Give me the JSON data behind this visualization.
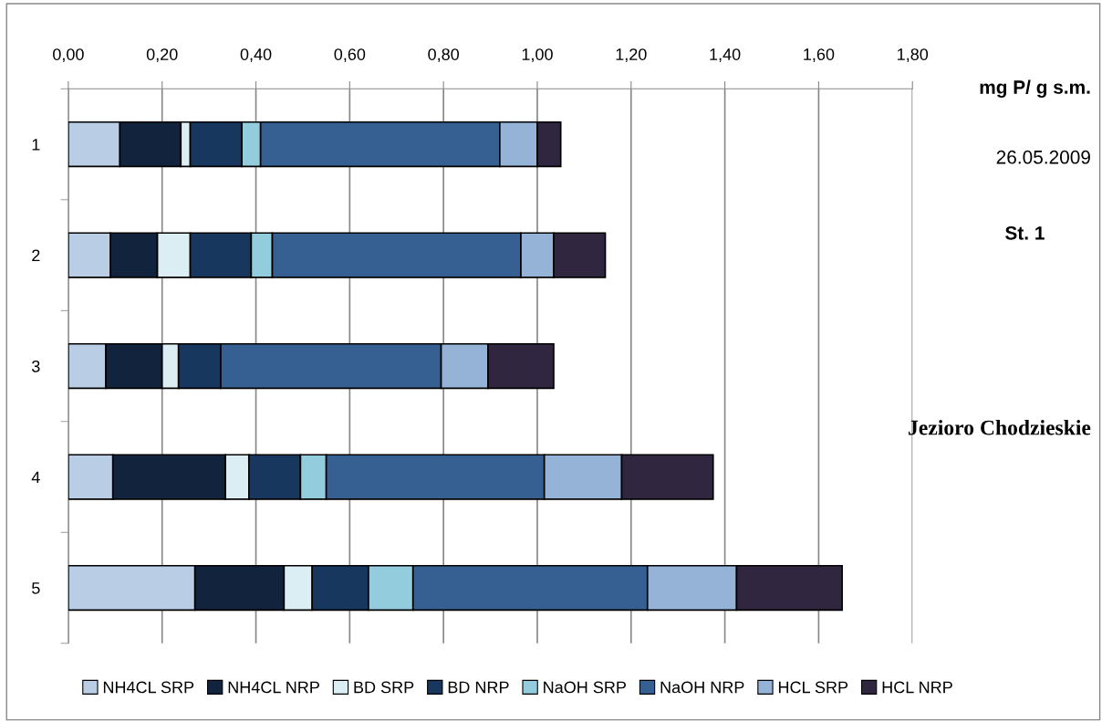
{
  "chart_data": {
    "type": "bar",
    "orientation": "horizontal",
    "stacked": true,
    "categories": [
      "1",
      "2",
      "3",
      "4",
      "5"
    ],
    "xlabel": "mg P/ g s.m.",
    "annotations": [
      "26.05.2009",
      "St. 1",
      "Jezioro Chodzieskie"
    ],
    "xlim": [
      0,
      1.8
    ],
    "xticks": [
      {
        "value": 0,
        "label": "0,00"
      },
      {
        "value": 0.2,
        "label": "0,20"
      },
      {
        "value": 0.4,
        "label": "0,40"
      },
      {
        "value": 0.6,
        "label": "0,60"
      },
      {
        "value": 0.8,
        "label": "0,80"
      },
      {
        "value": 1.0,
        "label": "1,00"
      },
      {
        "value": 1.2,
        "label": "1,20"
      },
      {
        "value": 1.4,
        "label": "1,40"
      },
      {
        "value": 1.6,
        "label": "1,60"
      },
      {
        "value": 1.8,
        "label": "1,80"
      }
    ],
    "grid": "x",
    "legend": "bottom",
    "series": [
      {
        "name": "NH4CL SRP",
        "color": "#b9cde5",
        "values": [
          0.11,
          0.09,
          0.08,
          0.095,
          0.27
        ]
      },
      {
        "name": "NH4CL NRP",
        "color": "#12243d",
        "values": [
          0.13,
          0.1,
          0.12,
          0.24,
          0.19
        ]
      },
      {
        "name": "BD SRP",
        "color": "#dbeef4",
        "values": [
          0.02,
          0.07,
          0.035,
          0.05,
          0.06
        ]
      },
      {
        "name": "BD NRP",
        "color": "#17375e",
        "values": [
          0.11,
          0.13,
          0.09,
          0.11,
          0.12
        ]
      },
      {
        "name": "NaOH SRP",
        "color": "#93cddd",
        "values": [
          0.04,
          0.045,
          0,
          0.055,
          0.095
        ]
      },
      {
        "name": "NaOH NRP",
        "color": "#366092",
        "values": [
          0.51,
          0.53,
          0.47,
          0.465,
          0.5
        ]
      },
      {
        "name": "HCL SRP",
        "color": "#95b3d7",
        "values": [
          0.08,
          0.07,
          0.1,
          0.165,
          0.19
        ]
      },
      {
        "name": "HCL NRP",
        "color": "#31263f",
        "values": [
          0.05,
          0.11,
          0.14,
          0.195,
          0.225
        ]
      }
    ]
  }
}
